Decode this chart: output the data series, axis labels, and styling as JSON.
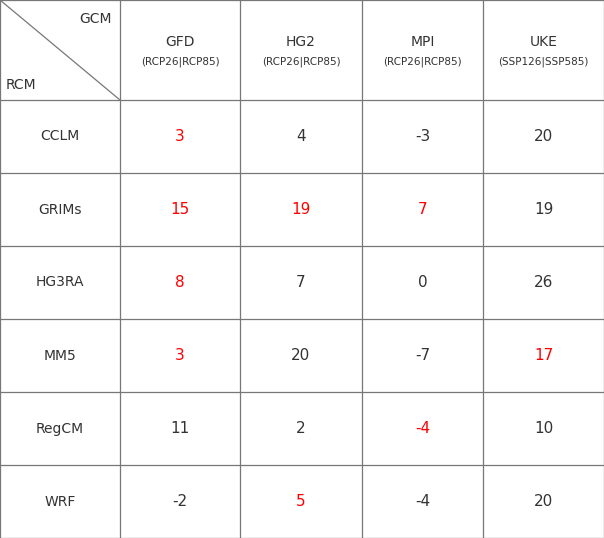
{
  "gcm_labels": [
    "GFD",
    "HG2",
    "MPI",
    "UKE"
  ],
  "gcm_sublabels": [
    "(RCP26|RCP85)",
    "(RCP26|RCP85)",
    "(RCP26|RCP85)",
    "(SSP126|SSP585)"
  ],
  "rcm_labels": [
    "CCLM",
    "GRIMs",
    "HG3RA",
    "MM5",
    "RegCM",
    "WRF"
  ],
  "values": [
    [
      "3",
      "4",
      "-3",
      "20"
    ],
    [
      "15",
      "19",
      "7",
      "19"
    ],
    [
      "8",
      "7",
      "0",
      "26"
    ],
    [
      "3",
      "20",
      "-7",
      "17"
    ],
    [
      "11",
      "2",
      "-4",
      "10"
    ],
    [
      "-2",
      "5",
      "-4",
      "20"
    ]
  ],
  "red_cells": [
    [
      true,
      false,
      false,
      false
    ],
    [
      true,
      true,
      true,
      false
    ],
    [
      true,
      false,
      false,
      false
    ],
    [
      true,
      false,
      false,
      true
    ],
    [
      false,
      false,
      true,
      false
    ],
    [
      false,
      true,
      false,
      false
    ]
  ],
  "header_gcm": "GCM",
  "header_rcm": "RCM",
  "line_color": "#777777",
  "text_color_normal": "#333333",
  "text_color_red": "#ff0000",
  "background_color": "#ffffff",
  "font_size_header_main": 10,
  "font_size_header_sub": 7.5,
  "font_size_value": 11,
  "font_size_label": 10,
  "font_size_corner": 10
}
